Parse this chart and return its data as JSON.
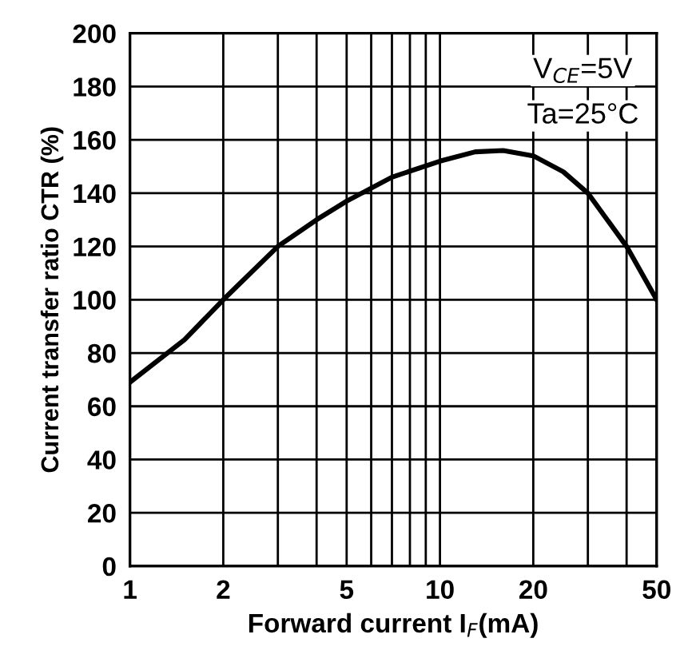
{
  "chart_data": {
    "type": "line",
    "xlabel": "Forward current I$_{F}$(mA)",
    "ylabel": "Current transfer ratio CTR (%)",
    "x": [
      1,
      1.5,
      2,
      3,
      4,
      5,
      7,
      10,
      13,
      16,
      20,
      25,
      30,
      40,
      50
    ],
    "series": [
      {
        "color": "#000000",
        "values": [
          69,
          85,
          100,
          120,
          130,
          137,
          146,
          152,
          155.5,
          156,
          154,
          148,
          140,
          120,
          100
        ]
      }
    ],
    "log": "x",
    "xlim": [
      1,
      50
    ],
    "ylim": [
      0,
      200
    ],
    "xticks": [
      1,
      2,
      {
        "value": 3,
        "label": null
      },
      {
        "value": 4,
        "label": null
      },
      5,
      {
        "value": 6,
        "label": null
      },
      {
        "value": 7,
        "label": null
      },
      {
        "value": 8,
        "label": null
      },
      {
        "value": 9,
        "label": null
      },
      10,
      20,
      {
        "value": 30,
        "label": null
      },
      {
        "value": 40,
        "label": null
      },
      50
    ],
    "yticks": [
      0,
      20,
      40,
      60,
      80,
      100,
      120,
      140,
      160,
      180,
      200
    ],
    "grid": true,
    "marker": "none",
    "line_style": "solid",
    "annotations": [
      "V$_{CE}$=5V",
      "Ta=25°C"
    ]
  }
}
